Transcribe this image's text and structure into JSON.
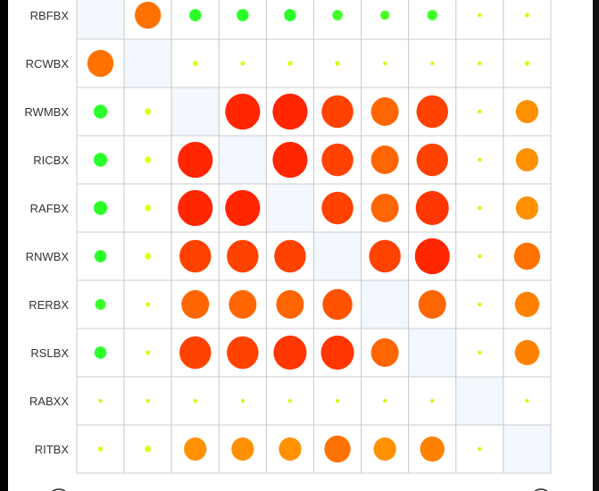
{
  "chart_data": {
    "type": "heatmap",
    "title": "",
    "row_labels": [
      "RBFBX",
      "RCWBX",
      "RWMBX",
      "RICBX",
      "RAFBX",
      "RNWBX",
      "RERBX",
      "RSLBX",
      "RABXX",
      "RITBX"
    ],
    "values": [
      [
        null,
        0.72,
        -0.33,
        -0.33,
        -0.33,
        -0.28,
        -0.25,
        -0.28,
        0.08,
        0.12
      ],
      [
        0.72,
        null,
        0.14,
        0.12,
        0.13,
        0.13,
        0.1,
        0.1,
        0.08,
        0.13
      ],
      [
        -0.37,
        0.17,
        null,
        0.96,
        0.96,
        0.87,
        0.76,
        0.87,
        0.08,
        0.62
      ],
      [
        -0.37,
        0.17,
        0.96,
        null,
        0.96,
        0.87,
        0.76,
        0.87,
        0.08,
        0.62
      ],
      [
        -0.37,
        0.17,
        0.96,
        0.96,
        null,
        0.87,
        0.76,
        0.91,
        0.08,
        0.62
      ],
      [
        -0.33,
        0.17,
        0.87,
        0.87,
        0.87,
        null,
        0.87,
        0.96,
        0.08,
        0.72
      ],
      [
        -0.29,
        0.12,
        0.76,
        0.76,
        0.76,
        0.82,
        null,
        0.76,
        0.08,
        0.67
      ],
      [
        -0.33,
        0.12,
        0.87,
        0.87,
        0.91,
        0.91,
        0.76,
        null,
        0.08,
        0.67
      ],
      [
        0.08,
        0.08,
        0.08,
        0.08,
        0.08,
        0.08,
        0.08,
        0.08,
        null,
        0.1
      ],
      [
        0.13,
        0.17,
        0.62,
        0.62,
        0.62,
        0.72,
        0.62,
        0.67,
        0.08,
        null
      ]
    ],
    "color_scale": {
      "negative": "#33ee33",
      "zero": "#aaee22",
      "positive": "#ff2200"
    },
    "diagonal_color": "#f2f8fd",
    "grid_color": "#cccccc",
    "grid": true
  }
}
